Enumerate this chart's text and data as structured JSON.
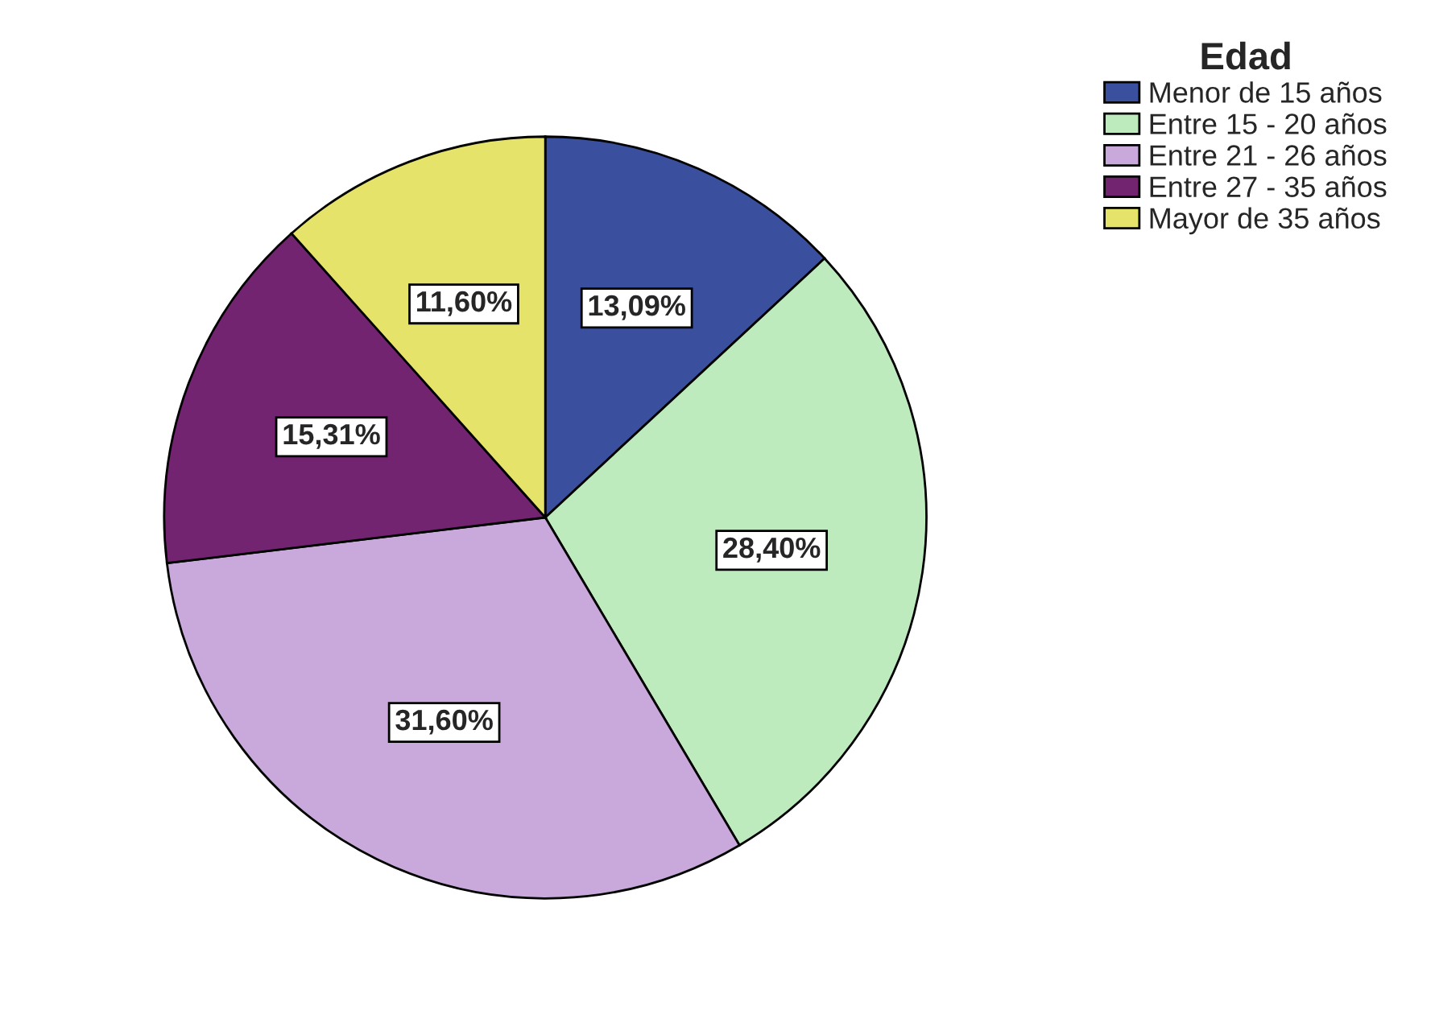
{
  "chart_data": {
    "type": "pie",
    "legend_title": "Edad",
    "legend": "top right",
    "categories": [
      "Menor de 15 años",
      "Entre 15 - 20 años",
      "Entre 21 - 26 años",
      "Entre 27 - 35 años",
      "Mayor de 35 años"
    ],
    "values": [
      13.09,
      28.4,
      31.6,
      15.31,
      11.6
    ],
    "value_labels": [
      "13,09%",
      "28,40%",
      "31,60%",
      "15,31%",
      "11,60%"
    ],
    "colors": [
      "#3a4f9e",
      "#bdebbd",
      "#c9a9dc",
      "#722470",
      "#e5e36a"
    ]
  }
}
